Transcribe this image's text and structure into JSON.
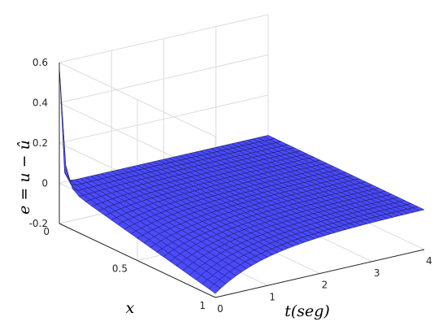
{
  "chart_data": {
    "type": "surface",
    "title": "",
    "xlabel": "t(seg)",
    "ylabel": "x",
    "zlabel": "e = u − û",
    "t_ticks": [
      "0",
      "1",
      "2",
      "3",
      "4"
    ],
    "x_ticks": [
      "0",
      "0.5",
      "1"
    ],
    "z_ticks": [
      "-0.2",
      "0",
      "0.2",
      "0.4",
      "0.6"
    ],
    "t_range": [
      0,
      4
    ],
    "x_range": [
      0,
      1
    ],
    "z_range": [
      -0.2,
      0.6
    ],
    "grid": true,
    "surface_color": "#4a4aff",
    "edge_color": "#1a1a4a",
    "surface_description_values": {
      "t": [
        0,
        0.1,
        0.3,
        0.6,
        1.0,
        1.5,
        2.0,
        2.5,
        3.0,
        3.5,
        4.0
      ],
      "x": [
        0,
        0.05,
        0.1,
        0.2,
        0.3,
        0.4,
        0.5,
        0.6,
        0.7,
        0.8,
        0.9,
        0.95,
        1.0
      ],
      "peak": {
        "t": 0,
        "x": 0,
        "e": 0.58
      },
      "trough": {
        "t": 0,
        "x": 1,
        "e": -0.18
      }
    }
  }
}
